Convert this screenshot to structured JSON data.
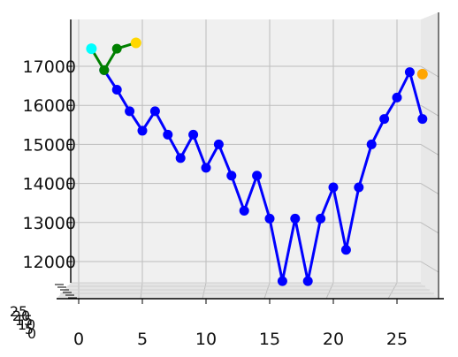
{
  "chart_data": {
    "type": "line",
    "title": "",
    "xlabel": "",
    "ylabel": "",
    "zlabel": "",
    "grid": true,
    "view": "3d-projection",
    "xlim": [
      0,
      28
    ],
    "ylim": [
      11300,
      18000
    ],
    "x_ticks": [
      "0",
      "5",
      "10",
      "15",
      "20",
      "25"
    ],
    "y_ticks": [
      "12000",
      "13000",
      "14000",
      "15000",
      "16000",
      "17000"
    ],
    "z_ticks": [
      "0",
      "5",
      "10",
      "15",
      "20",
      "25"
    ],
    "series": [
      {
        "color": "#0000ff",
        "x": [
          2,
          3,
          4,
          5,
          6,
          7,
          8,
          9,
          10,
          11,
          12,
          13,
          14,
          15,
          16,
          17,
          18,
          19,
          20,
          21,
          22,
          23,
          24,
          25,
          26,
          27
        ],
        "y": [
          16900,
          16400,
          15850,
          15350,
          15850,
          15250,
          14650,
          15250,
          14400,
          15000,
          14200,
          13300,
          14200,
          13100,
          11500,
          13100,
          11500,
          13100,
          13900,
          12300,
          13900,
          15000,
          15650,
          16200,
          16850,
          15650
        ]
      },
      {
        "color": "#008000",
        "x": [
          1,
          2,
          3,
          4.5
        ],
        "y": [
          17450,
          16900,
          17450,
          17600
        ]
      }
    ],
    "highlight_points": [
      {
        "x": 1,
        "y": 17450,
        "color": "#00ffff"
      },
      {
        "x": 4.5,
        "y": 17600,
        "color": "#ffd700"
      },
      {
        "x": 27,
        "y": 16800,
        "color": "#ffa500"
      }
    ]
  }
}
